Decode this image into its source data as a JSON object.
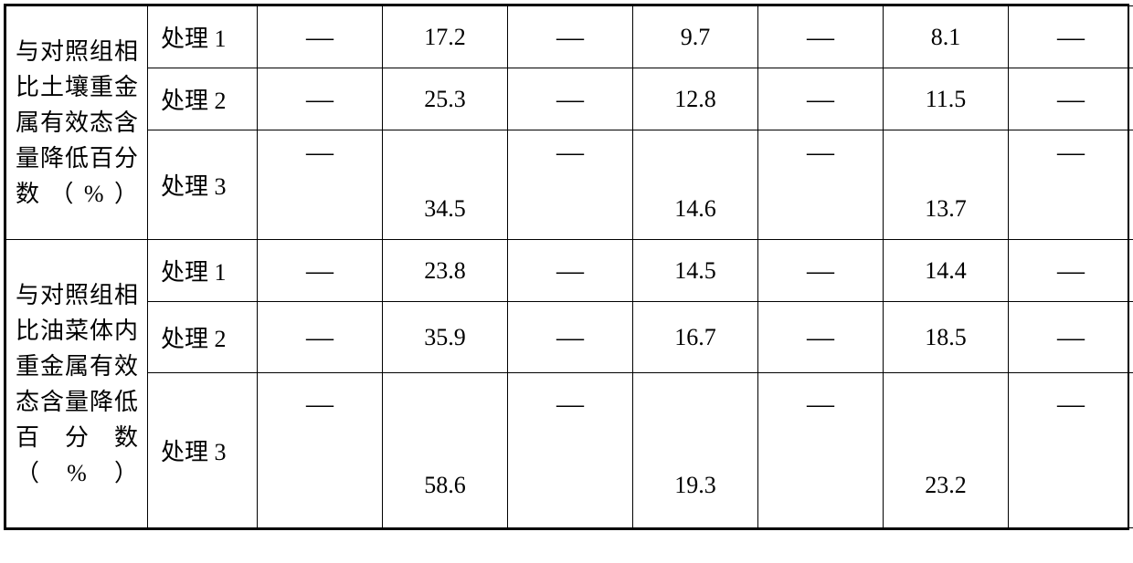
{
  "dash": "—",
  "groups": [
    {
      "label": "与对照组相比土壤重金属有效态含量降低百分数（%）",
      "rows": [
        {
          "treat": "处理 1",
          "h": "r-small",
          "v1": "17.2",
          "v2": "9.7",
          "v3": "8.1",
          "split": false
        },
        {
          "treat": "处理 2",
          "h": "r-small",
          "v1": "25.3",
          "v2": "12.8",
          "v3": "11.5",
          "split": false
        },
        {
          "treat": "处理 3",
          "h": "r-med",
          "v1": "34.5",
          "v2": "14.6",
          "v3": "13.7",
          "split": true
        }
      ]
    },
    {
      "label": "与对照组相比油菜体内重金属有效态含量降低百分数（%）",
      "rows": [
        {
          "treat": "处理 1",
          "h": "r-small",
          "v1": "23.8",
          "v2": "14.5",
          "v3": "14.4",
          "split": false
        },
        {
          "treat": "处理 2",
          "h": "r-med2",
          "v1": "35.9",
          "v2": "16.7",
          "v3": "18.5",
          "split": false
        },
        {
          "treat": "处理 3",
          "h": "r-big",
          "v1": "58.6",
          "v2": "19.3",
          "v3": "23.2",
          "split": true
        }
      ]
    }
  ]
}
